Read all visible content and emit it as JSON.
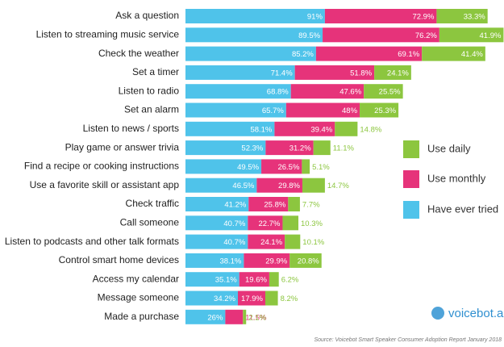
{
  "chart_data": {
    "type": "bar",
    "orientation": "horizontal",
    "stacked": true,
    "categories": [
      "Ask a question",
      "Listen to streaming music service",
      "Check the weather",
      "Set a timer",
      "Listen to radio",
      "Set an alarm",
      "Listen to news / sports",
      "Play game or answer trivia",
      "Find a recipe or cooking instructions",
      "Use a favorite skill or assistant app",
      "Check traffic",
      "Call someone",
      "Listen to podcasts and other talk formats",
      "Control smart home devices",
      "Access my calendar",
      "Message someone",
      "Made a purchase"
    ],
    "series": [
      {
        "name": "Have ever tried",
        "color": "#4fc3ea",
        "values": [
          91,
          89.5,
          85.2,
          71.4,
          68.8,
          65.7,
          58.1,
          52.3,
          49.5,
          46.5,
          41.2,
          40.7,
          40.7,
          38.1,
          35.1,
          34.2,
          26
        ],
        "value_labels": [
          "91%",
          "89.5%",
          "85.2%",
          "71.4%",
          "68.8%",
          "65.7%",
          "58.1%",
          "52.3%",
          "49.5%",
          "46.5%",
          "41.2%",
          "40.7%",
          "40.7%",
          "38.1%",
          "35.1%",
          "34.2%",
          "26%"
        ]
      },
      {
        "name": "Use monthly",
        "color": "#e6337a",
        "values": [
          72.9,
          76.2,
          69.1,
          51.8,
          47.6,
          48,
          39.4,
          31.2,
          26.5,
          29.8,
          25.8,
          22.7,
          24.1,
          29.9,
          19.6,
          17.9,
          11.5
        ],
        "value_labels": [
          "72.9%",
          "76.2%",
          "69.1%",
          "51.8%",
          "47.6%",
          "48%",
          "39.4%",
          "31.2%",
          "26.5%",
          "29.8%",
          "25.8%",
          "22.7%",
          "24.1%",
          "29.9%",
          "19.6%",
          "17.9%",
          "11.5%"
        ]
      },
      {
        "name": "Use daily",
        "color": "#8cc63f",
        "values": [
          33.3,
          41.9,
          41.4,
          24.1,
          25.5,
          25.3,
          14.8,
          11.1,
          5.1,
          14.7,
          7.7,
          10.3,
          10.1,
          20.8,
          6.2,
          8.2,
          2.1
        ],
        "value_labels": [
          "33.3%",
          "41.9%",
          "41.4%",
          "24.1%",
          "25.5%",
          "25.3%",
          "14.8%",
          "11.1%",
          "5.1%",
          "14.7%",
          "7.7%",
          "10.3%",
          "10.1%",
          "20.8%",
          "6.2%",
          "8.2%",
          "2.1%"
        ]
      }
    ],
    "logo": "voicebot.ai",
    "source": "Source: Voicebot Smart Speaker Consumer Adoption Report January 2018"
  }
}
